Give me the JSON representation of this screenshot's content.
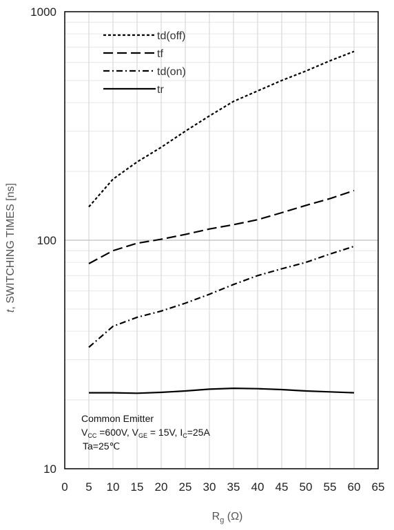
{
  "chart_data": {
    "type": "line",
    "xlabel": "R",
    "xlabel_sub": "g",
    "xlabel_unit": " (Ω)",
    "ylabel_italic": "t",
    "ylabel_rest": ", SWITCHING TIMES [ns]",
    "xlim": [
      0,
      65
    ],
    "ylim": [
      10,
      1000
    ],
    "yscale": "log",
    "grid": true,
    "legend_position": "top-left",
    "xticks": [
      "0",
      "5",
      "10",
      "15",
      "20",
      "25",
      "30",
      "35",
      "40",
      "45",
      "50",
      "55",
      "60",
      "65"
    ],
    "yticks": [
      "10",
      "100",
      "1000"
    ],
    "series": [
      {
        "name": "td(off)",
        "dash": "4,3",
        "x": [
          5,
          10,
          15,
          20,
          25,
          30,
          35,
          40,
          45,
          50,
          55,
          60
        ],
        "values": [
          140,
          185,
          220,
          255,
          300,
          350,
          405,
          450,
          500,
          550,
          610,
          670
        ]
      },
      {
        "name": "tf",
        "dash": "14,6",
        "x": [
          5,
          10,
          15,
          20,
          25,
          30,
          35,
          40,
          45,
          50,
          55,
          60
        ],
        "values": [
          79,
          90,
          97,
          101,
          106,
          112,
          117,
          123,
          132,
          142,
          152,
          165
        ]
      },
      {
        "name": "td(on)",
        "dash": "9,4,2,4",
        "x": [
          5,
          10,
          15,
          20,
          25,
          30,
          35,
          40,
          45,
          50,
          55,
          60
        ],
        "values": [
          34,
          42,
          46,
          49,
          53,
          58,
          64,
          70,
          75,
          80,
          87,
          94
        ]
      },
      {
        "name": "tr",
        "dash": "",
        "x": [
          5,
          10,
          15,
          20,
          25,
          30,
          35,
          40,
          45,
          50,
          55,
          60
        ],
        "values": [
          21.5,
          21.5,
          21.4,
          21.6,
          21.9,
          22.3,
          22.5,
          22.4,
          22.2,
          21.9,
          21.7,
          21.5
        ]
      }
    ],
    "annotation": {
      "line1": "Common Emitter",
      "line2_parts": [
        {
          "t": "V",
          "sub": false
        },
        {
          "t": "CC",
          "sub": true
        },
        {
          "t": " =600V, V",
          "sub": false
        },
        {
          "t": "GE",
          "sub": true
        },
        {
          "t": " = 15V, I",
          "sub": false
        },
        {
          "t": "C",
          "sub": true
        },
        {
          "t": "=25A",
          "sub": false
        }
      ],
      "line3": "Ta=25℃"
    }
  }
}
